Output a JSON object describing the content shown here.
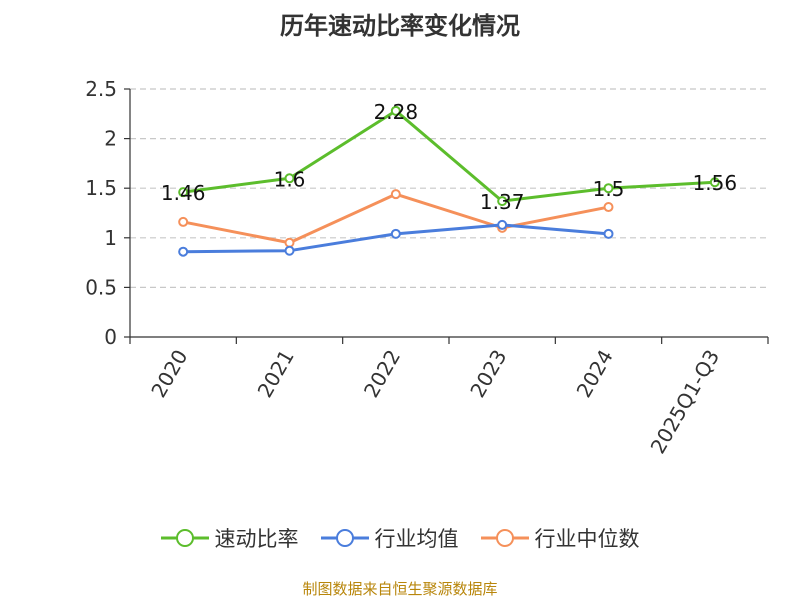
{
  "chart_data": {
    "type": "line",
    "title": "历年速动比率变化情况",
    "categories": [
      "2020",
      "2021",
      "2022",
      "2023",
      "2024",
      "2025Q1-Q3"
    ],
    "ylim": [
      0,
      2.5
    ],
    "yticks": [
      0,
      0.5,
      1,
      1.5,
      2,
      2.5
    ],
    "grid": true,
    "legend_position": "bottom",
    "series": [
      {
        "name": "速动比率",
        "color": "#5cbd2c",
        "values": [
          1.46,
          1.6,
          2.28,
          1.37,
          1.5,
          1.56
        ],
        "show_labels": true
      },
      {
        "name": "行业均值",
        "color": "#4a7ddc",
        "values": [
          0.86,
          0.87,
          1.04,
          1.13,
          1.04,
          null
        ],
        "show_labels": false
      },
      {
        "name": "行业中位数",
        "color": "#f5905a",
        "values": [
          1.16,
          0.95,
          1.44,
          1.1,
          1.31,
          null
        ],
        "show_labels": false
      }
    ]
  },
  "source_text": "制图数据来自恒生聚源数据库"
}
